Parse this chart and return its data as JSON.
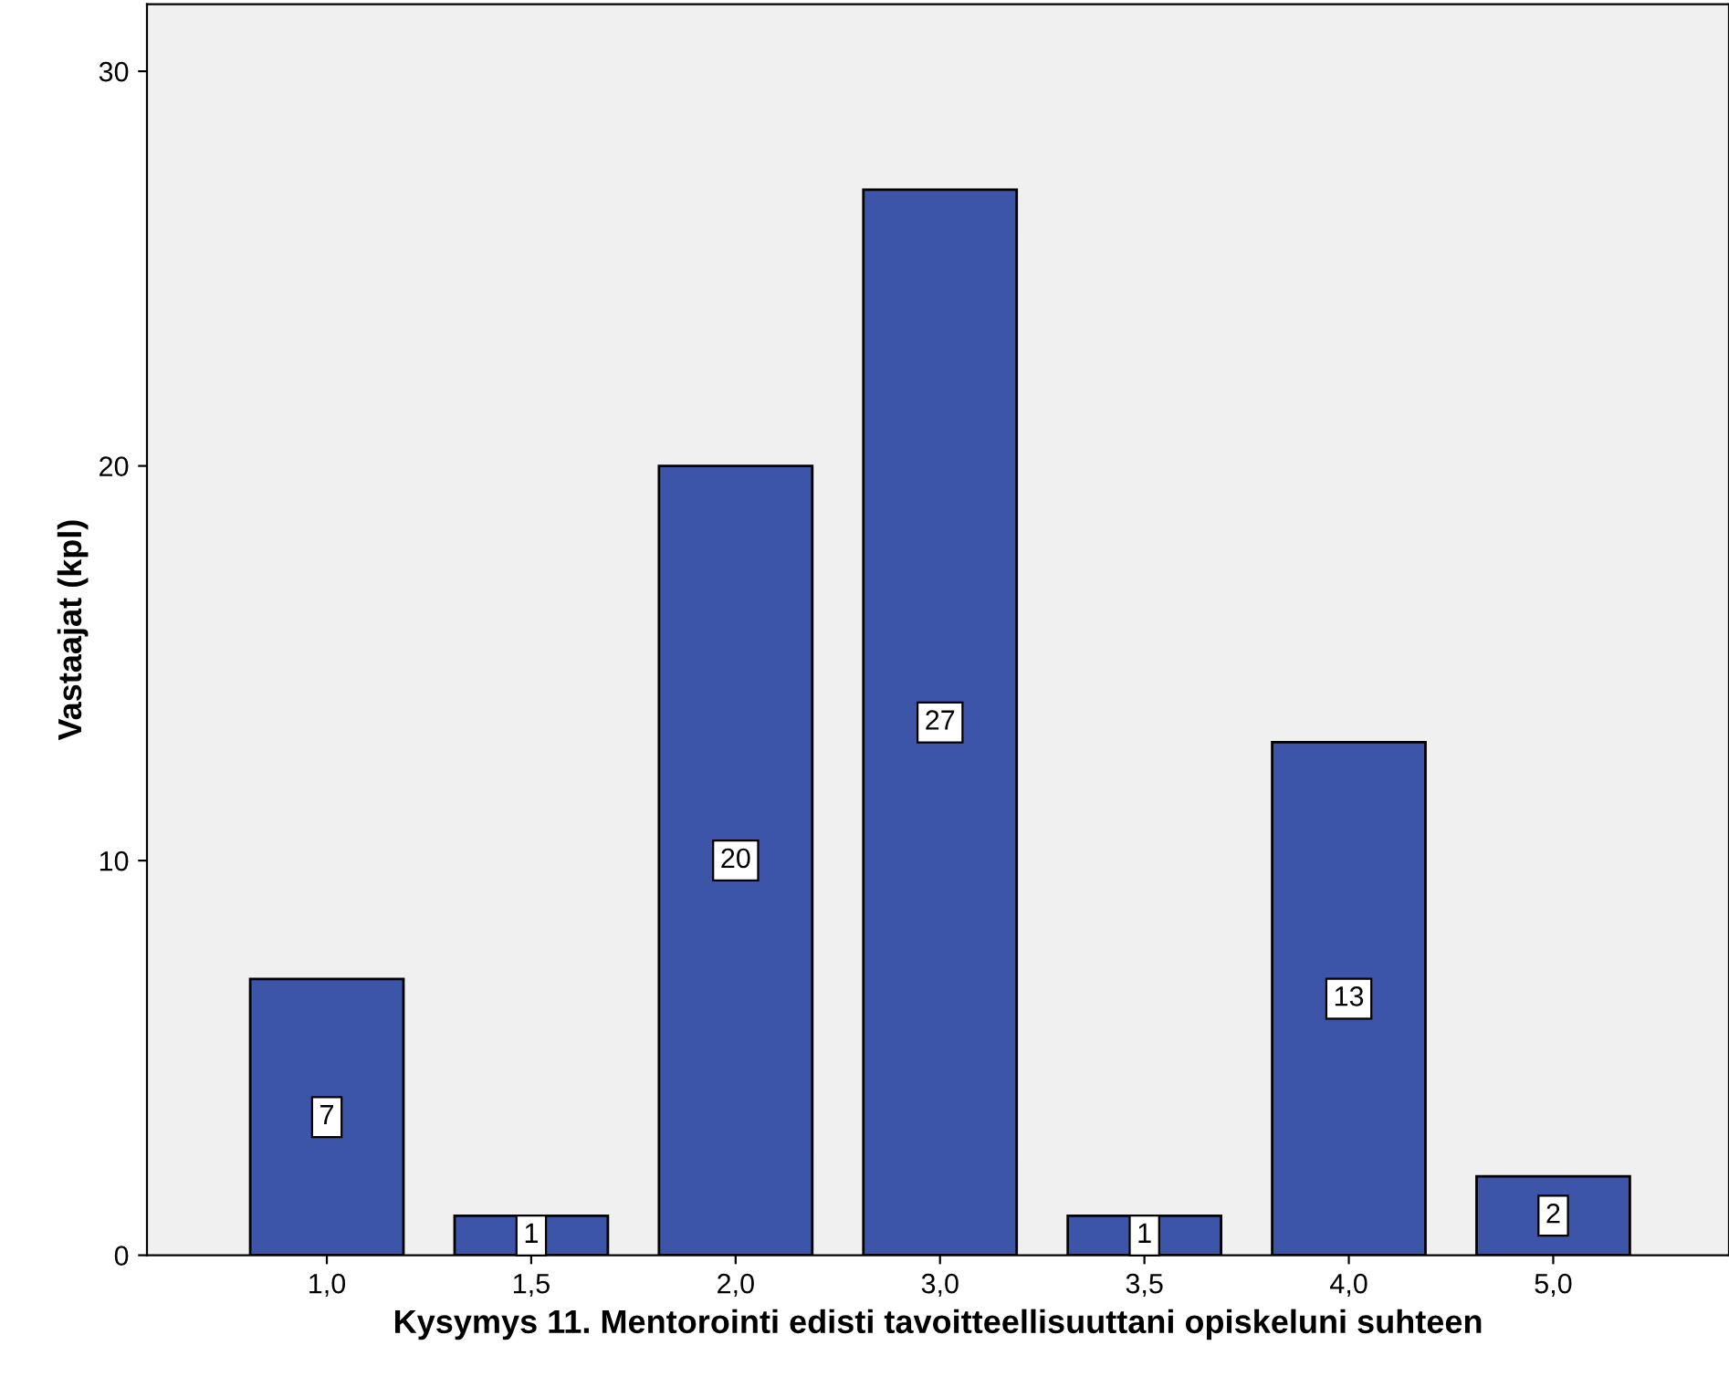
{
  "chart_data": {
    "type": "bar",
    "xlabel": "Kysymys 11. Mentorointi edisti tavoitteellisuuttani opiskeluni suhteen",
    "ylabel": "Vastaajat (kpl)",
    "categories": [
      "1,0",
      "1,5",
      "2,0",
      "3,0",
      "3,5",
      "4,0",
      "5,0"
    ],
    "values": [
      7,
      1,
      20,
      27,
      1,
      13,
      2
    ],
    "color": "#3c55a8",
    "ylim": [
      0,
      31.7
    ],
    "yticks": [
      0,
      10,
      20,
      30
    ],
    "data_labels": true,
    "grid": false,
    "legend": false
  }
}
